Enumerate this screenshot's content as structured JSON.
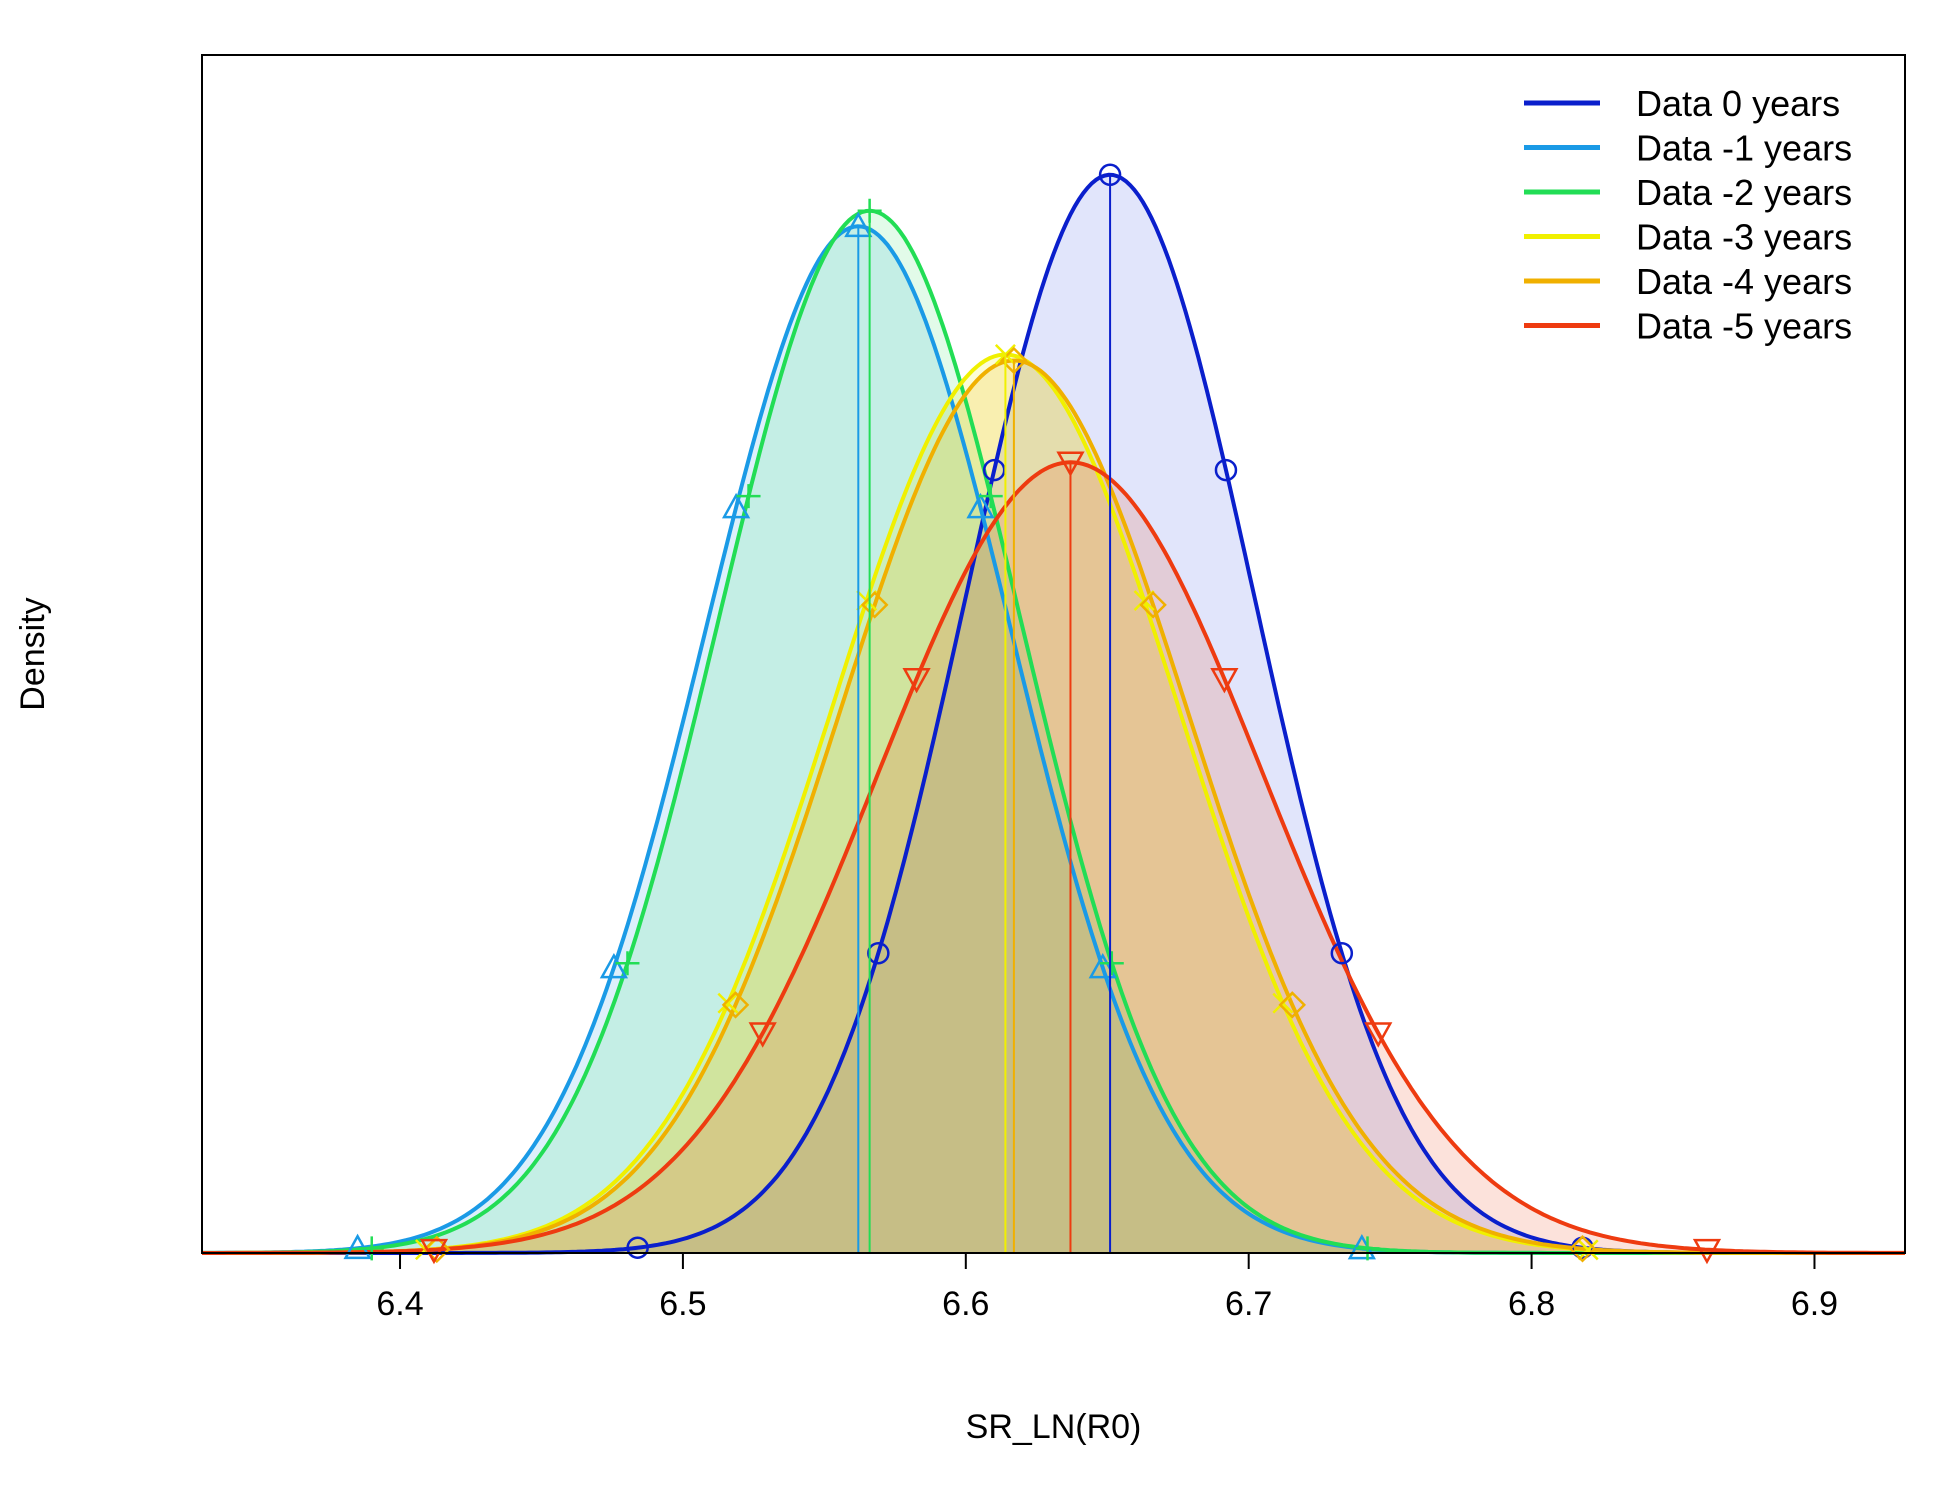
{
  "chart_data": {
    "type": "line",
    "title": "",
    "xlabel": "SR_LN(R0)",
    "ylabel": "Density",
    "xlim": [
      6.33,
      6.932
    ],
    "ylim": [
      0,
      1.0
    ],
    "xticks": [
      {
        "value": 6.4,
        "label": "6.4"
      },
      {
        "value": 6.5,
        "label": "6.5"
      },
      {
        "value": 6.6,
        "label": "6.6"
      },
      {
        "value": 6.7,
        "label": "6.7"
      },
      {
        "value": 6.8,
        "label": "6.8"
      },
      {
        "value": 6.9,
        "label": "6.9"
      }
    ],
    "legend_position": "top-right",
    "curve_kind": "normal density (relative height, y-axis unlabeled)",
    "series": [
      {
        "name": "Data 0 years",
        "mean": 6.651,
        "sd": 0.0512,
        "peak": 0.9,
        "color": "#0a1fcc",
        "fill": "rgba(90,110,235,0.18)",
        "marker": "circle",
        "interval": [
          6.484,
          6.818
        ]
      },
      {
        "name": "Data -1 years",
        "mean": 6.562,
        "sd": 0.054,
        "peak": 0.857,
        "color": "#1a9ae6",
        "fill": "rgba(26,154,230,0.15)",
        "marker": "triangle",
        "interval": [
          6.385,
          6.74
        ]
      },
      {
        "name": "Data -2 years",
        "mean": 6.566,
        "sd": 0.0535,
        "peak": 0.87,
        "color": "#22dd55",
        "fill": "rgba(34,221,85,0.13)",
        "marker": "plus",
        "interval": [
          6.39,
          6.742
        ]
      },
      {
        "name": "Data -3 years",
        "mean": 6.614,
        "sd": 0.0613,
        "peak": 0.75,
        "color": "#f0f000",
        "fill": "rgba(240,240,0,0.17)",
        "marker": "x",
        "interval": [
          6.409,
          6.82
        ]
      },
      {
        "name": "Data -4 years",
        "mean": 6.617,
        "sd": 0.0615,
        "peak": 0.745,
        "color": "#f0b000",
        "fill": "rgba(240,176,0,0.17)",
        "marker": "diamond",
        "interval": [
          6.413,
          6.818
        ]
      },
      {
        "name": "Data -5 years",
        "mean": 6.637,
        "sd": 0.068,
        "peak": 0.66,
        "color": "#ee3b10",
        "fill": "rgba(238,59,16,0.15)",
        "marker": "triangle-down",
        "interval": [
          6.412,
          6.862
        ]
      }
    ]
  }
}
